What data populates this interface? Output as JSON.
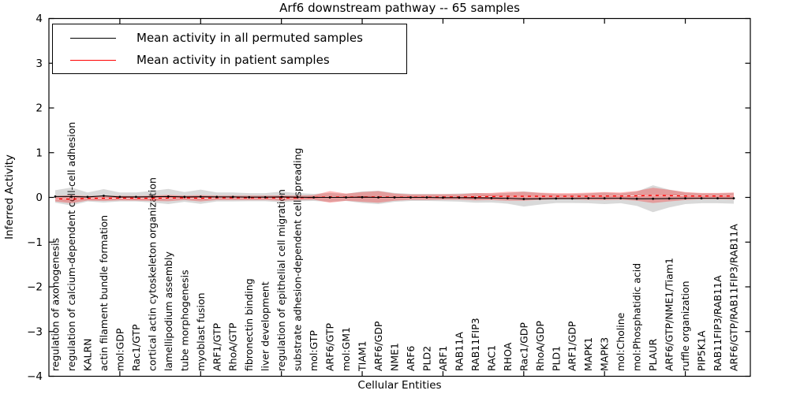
{
  "chart_data": {
    "type": "line",
    "title": "Arf6 downstream pathway -- 65 samples",
    "xlabel": "Cellular Entities",
    "ylabel": "Inferred Activity",
    "ylim": [
      -4,
      4
    ],
    "yticks": [
      -4,
      -3,
      -2,
      -1,
      0,
      1,
      2,
      3,
      4
    ],
    "grid": false,
    "legend_position": "upper left",
    "categories": [
      "regulation of axonogenesis",
      "regulation of calcium-dependent cell-cell adhesion",
      "KALRN",
      "actin filament bundle formation",
      "mol:GDP",
      "Rac1/GTP",
      "cortical actin cytoskeleton organization",
      "lamellipodium assembly",
      "tube morphogenesis",
      "myoblast fusion",
      "ARF1/GTP",
      "RhoA/GTP",
      "fibronectin binding",
      "liver development",
      "regulation of epithelial cell migration",
      "substrate adhesion-dependent cell spreading",
      "mol:GTP",
      "ARF6/GTP",
      "mol:GM1",
      "TIAM1",
      "ARF6/GDP",
      "NME1",
      "ARF6",
      "PLD2",
      "ARF1",
      "RAB11A",
      "RAB11FIP3",
      "RAC1",
      "RHOA",
      "Rac1/GDP",
      "RhoA/GDP",
      "PLD1",
      "ARF1/GDP",
      "MAPK1",
      "MAPK3",
      "mol:Choline",
      "mol:Phosphatidic acid",
      "PLAUR",
      "ARF6/GTP/NME1/Tiam1",
      "ruffle organization",
      "PIP5K1A",
      "RAB11FIP3/RAB11A",
      "ARF6/GTP/RAB11FIP3/RAB11A"
    ],
    "series": [
      {
        "name": "Mean activity in all permuted samples",
        "color": "#000000",
        "band_color": "rgba(130,130,130,0.30)",
        "values": [
          0.02,
          0.02,
          0.01,
          0.035,
          0.01,
          0.01,
          0.015,
          0.02,
          0.01,
          0.015,
          0.01,
          0.01,
          0.005,
          0.005,
          0.01,
          0.005,
          0.0,
          0.0,
          0.0,
          0.005,
          0.0,
          0.0,
          0.0,
          0.0,
          -0.005,
          -0.005,
          -0.01,
          -0.015,
          -0.02,
          -0.035,
          -0.03,
          -0.025,
          -0.025,
          -0.02,
          -0.02,
          -0.02,
          -0.03,
          -0.03,
          -0.025,
          -0.02,
          -0.02,
          -0.02,
          -0.02
        ],
        "band_halfwidth": [
          0.14,
          0.2,
          0.1,
          0.15,
          0.1,
          0.1,
          0.13,
          0.17,
          0.11,
          0.16,
          0.1,
          0.1,
          0.09,
          0.09,
          0.12,
          0.09,
          0.08,
          0.1,
          0.08,
          0.13,
          0.15,
          0.1,
          0.08,
          0.08,
          0.08,
          0.09,
          0.11,
          0.1,
          0.12,
          0.17,
          0.13,
          0.1,
          0.1,
          0.11,
          0.13,
          0.11,
          0.16,
          0.3,
          0.2,
          0.13,
          0.11,
          0.11,
          0.12
        ]
      },
      {
        "name": "Mean activity in patient samples",
        "color": "#ff0000",
        "band_color": "rgba(255,0,0,0.28)",
        "values": [
          -0.03,
          -0.04,
          -0.02,
          -0.02,
          -0.015,
          -0.02,
          -0.02,
          -0.015,
          -0.01,
          -0.02,
          -0.01,
          -0.01,
          -0.01,
          -0.01,
          -0.015,
          -0.01,
          0.0,
          0.01,
          0.005,
          0.01,
          0.01,
          0.005,
          0.005,
          0.005,
          0.01,
          0.01,
          0.015,
          0.02,
          0.025,
          0.025,
          0.025,
          0.025,
          0.025,
          0.025,
          0.03,
          0.03,
          0.035,
          0.045,
          0.04,
          0.03,
          0.03,
          0.03,
          0.03
        ],
        "band_halfwidth": [
          0.06,
          0.09,
          0.05,
          0.06,
          0.05,
          0.05,
          0.06,
          0.07,
          0.05,
          0.07,
          0.05,
          0.05,
          0.05,
          0.05,
          0.06,
          0.05,
          0.05,
          0.13,
          0.08,
          0.11,
          0.13,
          0.08,
          0.06,
          0.06,
          0.06,
          0.06,
          0.08,
          0.08,
          0.1,
          0.1,
          0.08,
          0.07,
          0.07,
          0.08,
          0.09,
          0.08,
          0.11,
          0.17,
          0.13,
          0.09,
          0.07,
          0.07,
          0.08
        ]
      }
    ]
  }
}
